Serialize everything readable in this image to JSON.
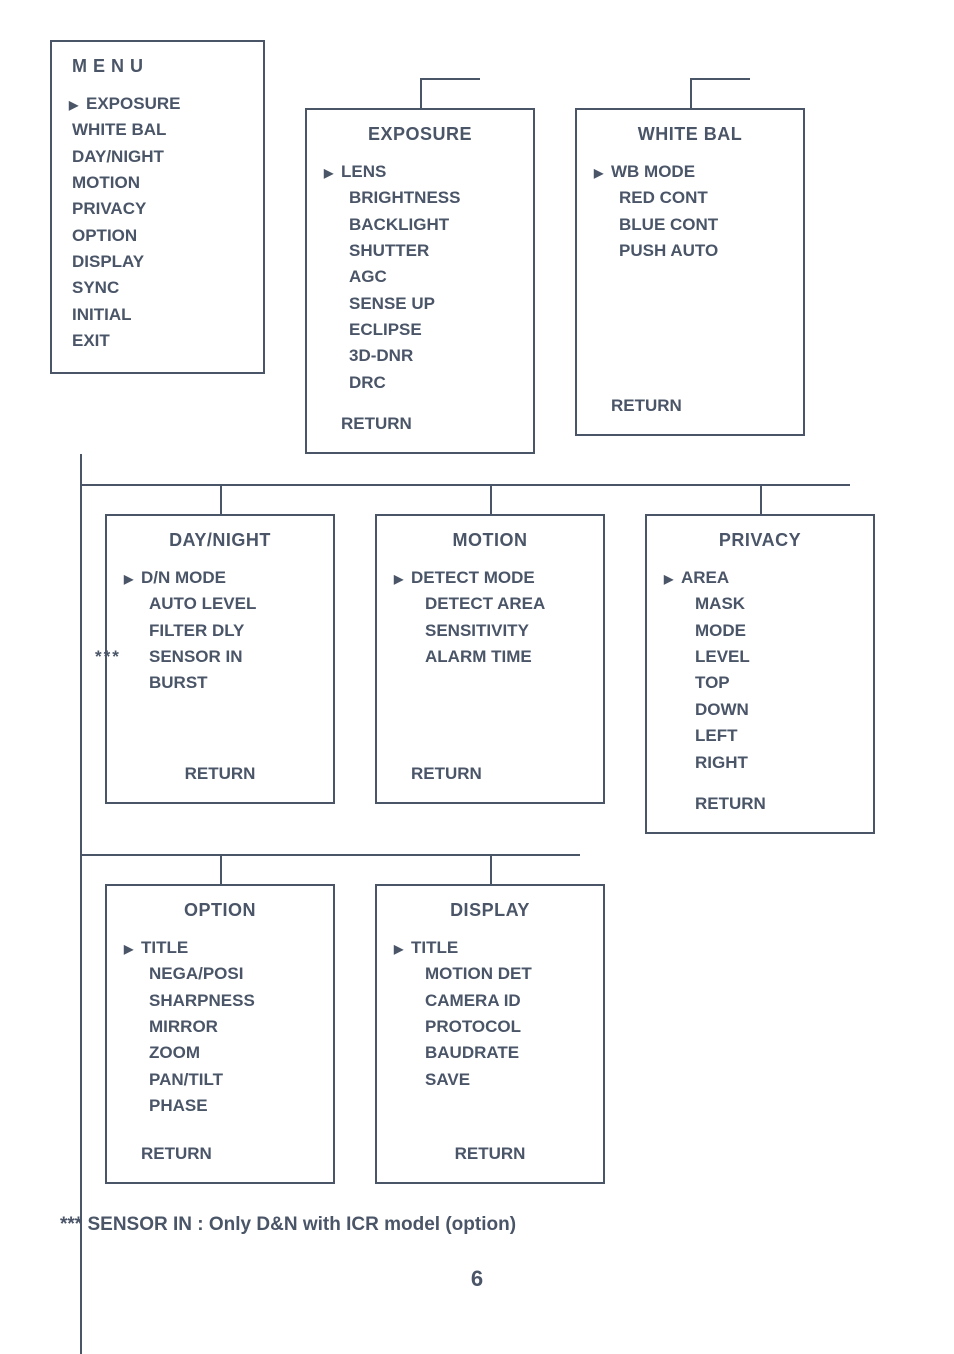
{
  "colors": {
    "text": "#4a5568",
    "bg": "#ffffff",
    "border": "#4a5568"
  },
  "main": {
    "title": "M E N U",
    "items": [
      "EXPOSURE",
      "WHITE BAL",
      "DAY/NIGHT",
      "MOTION",
      "PRIVACY",
      "OPTION",
      "DISPLAY",
      "SYNC",
      "INITIAL",
      "EXIT"
    ],
    "selected": 0
  },
  "exposure": {
    "title": "EXPOSURE",
    "items": [
      "LENS",
      "BRIGHTNESS",
      "BACKLIGHT",
      "SHUTTER",
      "AGC",
      "SENSE UP",
      "ECLIPSE",
      "3D-DNR",
      "DRC"
    ],
    "return": "RETURN"
  },
  "whitebal": {
    "title": "WHITE BAL",
    "items": [
      "WB MODE",
      "RED CONT",
      "BLUE CONT",
      "PUSH AUTO"
    ],
    "return": "RETURN"
  },
  "daynight": {
    "title": "DAY/NIGHT",
    "items": [
      "D/N MODE",
      "AUTO LEVEL",
      "FILTER DLY",
      "SENSOR IN",
      "BURST"
    ],
    "stars_index": 3,
    "return": "RETURN"
  },
  "motion": {
    "title": "MOTION",
    "items": [
      "DETECT MODE",
      "DETECT AREA",
      "SENSITIVITY",
      "ALARM TIME"
    ],
    "return": "RETURN"
  },
  "privacy": {
    "title": "PRIVACY",
    "items": [
      "AREA",
      "MASK",
      "MODE",
      "LEVEL",
      "TOP",
      "DOWN",
      "LEFT",
      "RIGHT"
    ],
    "return": "RETURN"
  },
  "option": {
    "title": "OPTION",
    "items": [
      "TITLE",
      "NEGA/POSI",
      "SHARPNESS",
      "MIRROR",
      "ZOOM",
      "PAN/TILT",
      "PHASE"
    ],
    "return": "RETURN"
  },
  "display": {
    "title": "DISPLAY",
    "items": [
      "TITLE",
      "MOTION DET",
      "CAMERA ID",
      "PROTOCOL",
      "BAUDRATE",
      "SAVE"
    ],
    "return": "RETURN"
  },
  "footnote_prefix": "***",
  "footnote_bold": "SENSOR IN",
  "footnote_sep": " : ",
  "footnote_text": "Only D&N with ICR model (option)",
  "page": "6"
}
